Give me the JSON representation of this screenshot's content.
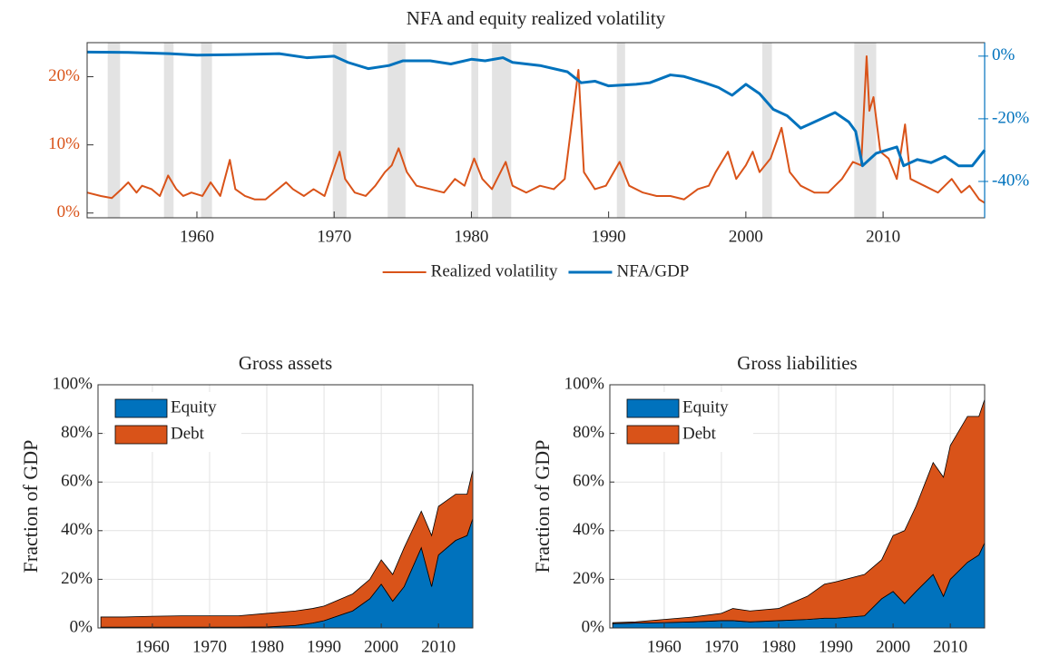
{
  "chart_data": [
    {
      "type": "line",
      "title": "NFA and equity realized volatility",
      "xlim": [
        1952,
        2017.4
      ],
      "xticks": [
        1960,
        1970,
        1980,
        1990,
        2000,
        2010
      ],
      "ylim": [
        -0.7,
        25
      ],
      "yticks": [
        {
          "value": 0,
          "label": "0%"
        },
        {
          "value": 10,
          "label": "10%"
        },
        {
          "value": 20,
          "label": "20%"
        }
      ],
      "y2lim": [
        -51.6,
        4.3
      ],
      "y2ticks": [
        {
          "value": 0,
          "label": "0%"
        },
        {
          "value": -20,
          "label": "-20%"
        },
        {
          "value": -40,
          "label": "-40%"
        }
      ],
      "shaded_periods": [
        [
          1953.5,
          1954.4
        ],
        [
          1957.6,
          1958.3
        ],
        [
          1960.3,
          1961.1
        ],
        [
          1969.9,
          1970.9
        ],
        [
          1973.9,
          1975.2
        ],
        [
          1980.0,
          1980.5
        ],
        [
          1981.5,
          1982.9
        ],
        [
          1990.6,
          1991.2
        ],
        [
          2001.2,
          2001.9
        ],
        [
          2007.9,
          2009.5
        ]
      ],
      "shade_color": "#e3e3e3",
      "legend": "below",
      "series": [
        {
          "name": "Realized volatility",
          "color": "#d95319",
          "axis": "y",
          "x": [
            1952,
            1953,
            1953.8,
            1954.5,
            1955,
            1955.6,
            1956,
            1956.7,
            1957.3,
            1957.9,
            1958.5,
            1959,
            1959.6,
            1960.4,
            1961,
            1961.7,
            1962.4,
            1962.8,
            1963.5,
            1964.2,
            1965,
            1965.6,
            1966.5,
            1967,
            1967.8,
            1968.5,
            1969.3,
            1970.4,
            1970.8,
            1971.5,
            1972.3,
            1973,
            1973.7,
            1974.2,
            1974.7,
            1975.3,
            1976,
            1977,
            1978,
            1978.8,
            1979.5,
            1980.2,
            1980.8,
            1981.5,
            1982.5,
            1983,
            1984,
            1985,
            1986,
            1986.8,
            1987.8,
            1988.2,
            1989,
            1989.8,
            1990.8,
            1991.5,
            1992.5,
            1993.5,
            1994.5,
            1995.5,
            1996.5,
            1997.3,
            1997.8,
            1998.7,
            1999.3,
            2000,
            2000.5,
            2001,
            2001.8,
            2002.6,
            2003.2,
            2004,
            2005,
            2006,
            2007,
            2007.8,
            2008.4,
            2008.8,
            2009,
            2009.3,
            2009.8,
            2010.4,
            2011,
            2011.6,
            2012,
            2013,
            2014,
            2015,
            2015.7,
            2016.3,
            2017,
            2017.4
          ],
          "values": [
            3,
            2.5,
            2.2,
            3.5,
            4.5,
            3,
            4,
            3.5,
            2.5,
            5.5,
            3.5,
            2.5,
            3,
            2.5,
            4.5,
            2.5,
            7.8,
            3.5,
            2.5,
            2,
            2,
            3,
            4.5,
            3.5,
            2.5,
            3.5,
            2.5,
            9,
            5,
            3,
            2.5,
            4,
            6,
            7,
            9.5,
            6,
            4,
            3.5,
            3,
            5,
            4,
            8,
            5,
            3.5,
            7.5,
            4,
            3,
            4,
            3.5,
            5,
            21,
            6,
            3.5,
            4,
            7.5,
            4,
            3,
            2.5,
            2.5,
            2,
            3.5,
            4,
            6,
            9,
            5,
            7,
            9,
            6,
            8,
            12.5,
            6,
            4,
            3,
            3,
            5,
            7.5,
            7,
            23,
            15,
            17,
            9,
            8,
            5,
            13,
            5,
            4,
            3,
            5,
            3,
            4,
            2,
            1.5
          ]
        },
        {
          "name": "NFA/GDP",
          "color": "#0072bd",
          "axis": "y2",
          "x": [
            1952,
            1955,
            1958,
            1960,
            1963,
            1966,
            1968,
            1970,
            1971,
            1972.5,
            1974,
            1975,
            1977,
            1978.5,
            1980,
            1981,
            1982.3,
            1983,
            1985,
            1987,
            1988,
            1989,
            1990,
            1992,
            1993,
            1994.5,
            1995.5,
            1997,
            1998,
            1999,
            2000,
            2001,
            2002,
            2003,
            2004,
            2005,
            2006.5,
            2007.5,
            2008,
            2008.5,
            2009.5,
            2011,
            2011.5,
            2012.5,
            2013.5,
            2014.5,
            2015.5,
            2016.5,
            2017.4
          ],
          "values": [
            1.3,
            1.2,
            0.8,
            0.3,
            0.5,
            0.8,
            -0.5,
            0,
            -2,
            -4,
            -3,
            -1.5,
            -1.5,
            -2.5,
            -1,
            -1.5,
            -0.5,
            -2,
            -3,
            -5,
            -8.5,
            -8,
            -9.5,
            -9,
            -8.5,
            -6,
            -6.5,
            -8.5,
            -10,
            -12.5,
            -9,
            -12,
            -17,
            -19,
            -23,
            -21,
            -18,
            -21,
            -24,
            -35,
            -31,
            -29,
            -35,
            -33,
            -34,
            -32,
            -35,
            -35,
            -30
          ]
        }
      ]
    },
    {
      "type": "area",
      "title": "Gross assets",
      "y_label": "Fraction of GDP",
      "stacked": true,
      "grid": true,
      "legend": "upper left",
      "xlim": [
        1950.5,
        2016
      ],
      "xticks": [
        1960,
        1970,
        1980,
        1990,
        2000,
        2010
      ],
      "ylim": [
        0,
        100
      ],
      "yticks": [
        {
          "value": 0,
          "label": "0%"
        },
        {
          "value": 20,
          "label": "20%"
        },
        {
          "value": 40,
          "label": "40%"
        },
        {
          "value": 60,
          "label": "60%"
        },
        {
          "value": 80,
          "label": "80%"
        },
        {
          "value": 100,
          "label": "100%"
        }
      ],
      "x": [
        1951,
        1955,
        1960,
        1965,
        1970,
        1972,
        1975,
        1980,
        1985,
        1988,
        1990,
        1995,
        1998,
        2000,
        2002,
        2004,
        2007,
        2008.8,
        2010,
        2013,
        2015,
        2016
      ],
      "series": [
        {
          "name": "Equity",
          "color": "#0072bd",
          "values": [
            0.3,
            0.3,
            0.3,
            0.3,
            0.3,
            0.3,
            0.3,
            0.4,
            1,
            2,
            3,
            7,
            12,
            18,
            11,
            17,
            33,
            17,
            30,
            36,
            38,
            45
          ]
        },
        {
          "name": "Debt",
          "color": "#d95319",
          "values": [
            4.2,
            4.2,
            4.5,
            4.7,
            4.7,
            4.7,
            4.7,
            5.6,
            6,
            6,
            6,
            7,
            8,
            10,
            11,
            16,
            15,
            21,
            20,
            19,
            17,
            20
          ]
        }
      ]
    },
    {
      "type": "area",
      "title": "Gross liabilities",
      "y_label": "Fraction of GDP",
      "stacked": true,
      "grid": true,
      "legend": "upper left",
      "xlim": [
        1950.5,
        2016
      ],
      "xticks": [
        1960,
        1970,
        1980,
        1990,
        2000,
        2010
      ],
      "ylim": [
        0,
        100
      ],
      "yticks": [
        {
          "value": 0,
          "label": "0%"
        },
        {
          "value": 20,
          "label": "20%"
        },
        {
          "value": 40,
          "label": "40%"
        },
        {
          "value": 60,
          "label": "60%"
        },
        {
          "value": 80,
          "label": "80%"
        },
        {
          "value": 100,
          "label": "100%"
        }
      ],
      "x": [
        1951,
        1955,
        1960,
        1965,
        1970,
        1972,
        1975,
        1980,
        1985,
        1988,
        1990,
        1995,
        1998,
        2000,
        2002,
        2004,
        2007,
        2008.8,
        2010,
        2013,
        2015,
        2016
      ],
      "series": [
        {
          "name": "Equity",
          "color": "#0072bd",
          "values": [
            1.8,
            2,
            2.2,
            2.5,
            3,
            3,
            2.5,
            3,
            3.5,
            4,
            4,
            5,
            12,
            15,
            10,
            15,
            22,
            13,
            20,
            27,
            30,
            35
          ]
        },
        {
          "name": "Debt",
          "color": "#d95319",
          "values": [
            0.4,
            0.5,
            1.3,
            2,
            3,
            5,
            4.5,
            5,
            9.5,
            14,
            15,
            17,
            16,
            23,
            30,
            35,
            46,
            49,
            55,
            60,
            57,
            59
          ]
        }
      ]
    }
  ]
}
